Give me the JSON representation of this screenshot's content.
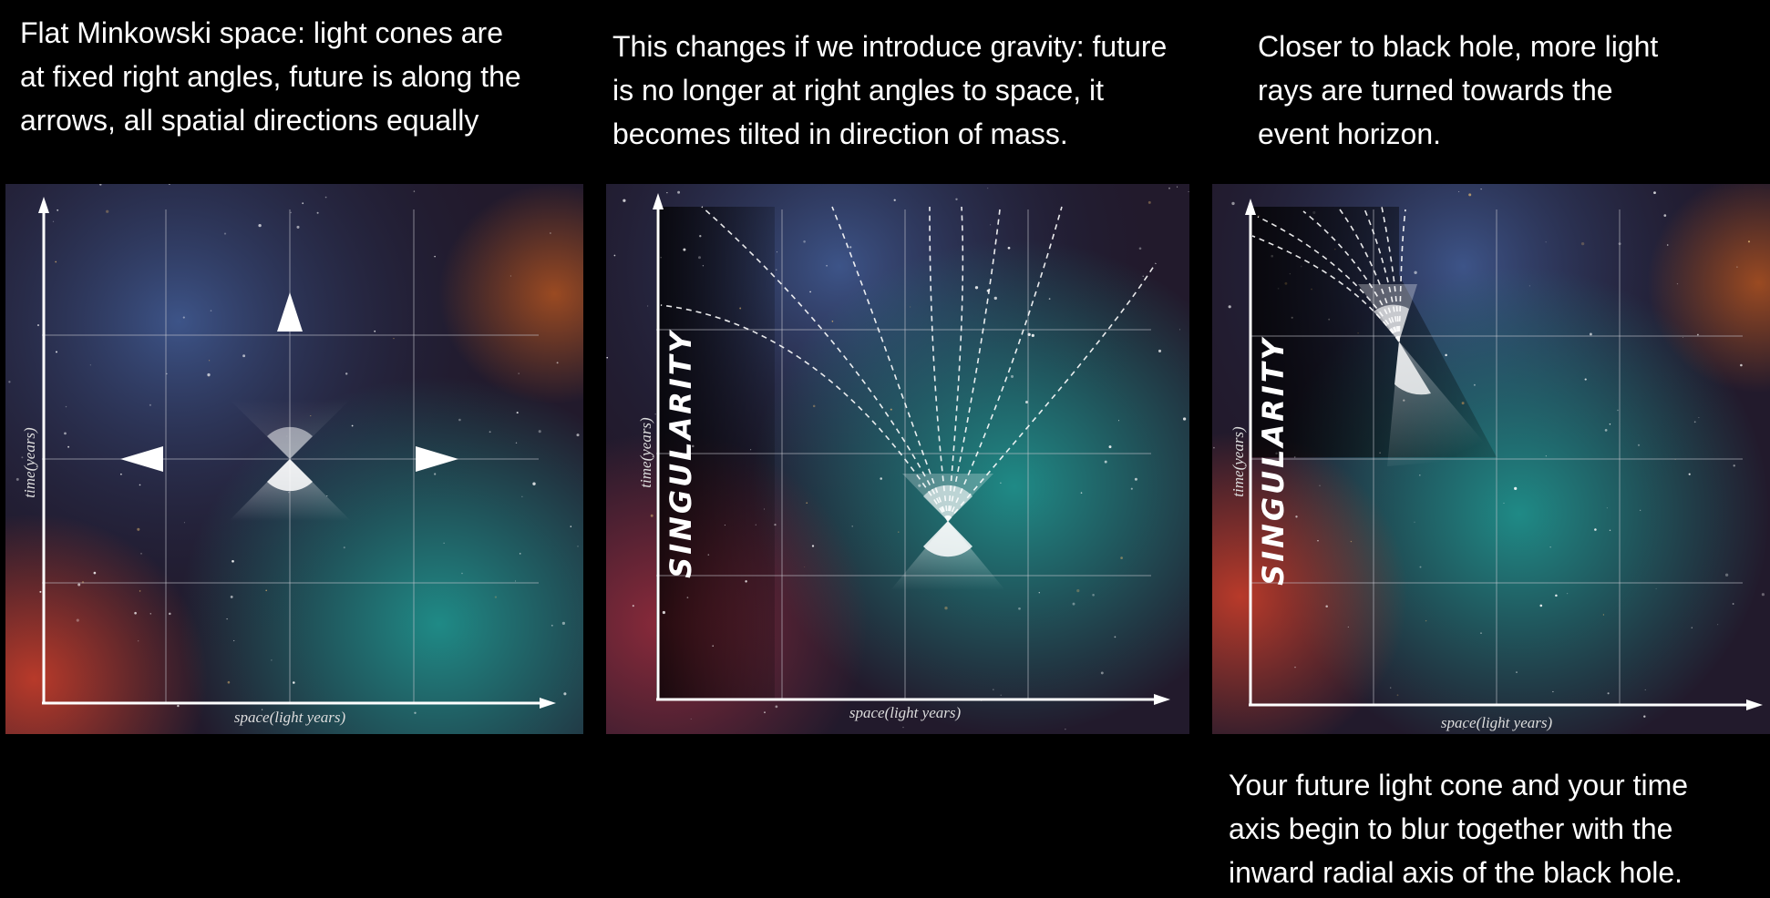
{
  "captions": {
    "panel1": [
      "Flat Minkowski space: light cones are",
      "at fixed right angles, future is along the",
      "arrows, all spatial directions equally"
    ],
    "panel2": [
      "This changes if we introduce gravity: future",
      "is no longer at right angles to space, it",
      "becomes tilted in direction of mass."
    ],
    "panel3": [
      "Closer to black hole, more light",
      "rays are turned towards the",
      "event horizon."
    ],
    "bottom": [
      "Your future light cone and your time",
      "axis begin to blur together with the",
      "inward radial axis of the black hole."
    ]
  },
  "diagram": {
    "x_axis_label": "space(light years)",
    "y_axis_label": "time(years)",
    "singularity_label": "SINGULARITY"
  },
  "colors": {
    "background": "#000000",
    "text": "#ffffff",
    "grid": "#c8c8d0",
    "nebula_teal": "#1f8a86",
    "nebula_red": "#b83a2a",
    "nebula_blue": "#3a5a9a",
    "space_purple": "#2a1a2e"
  }
}
